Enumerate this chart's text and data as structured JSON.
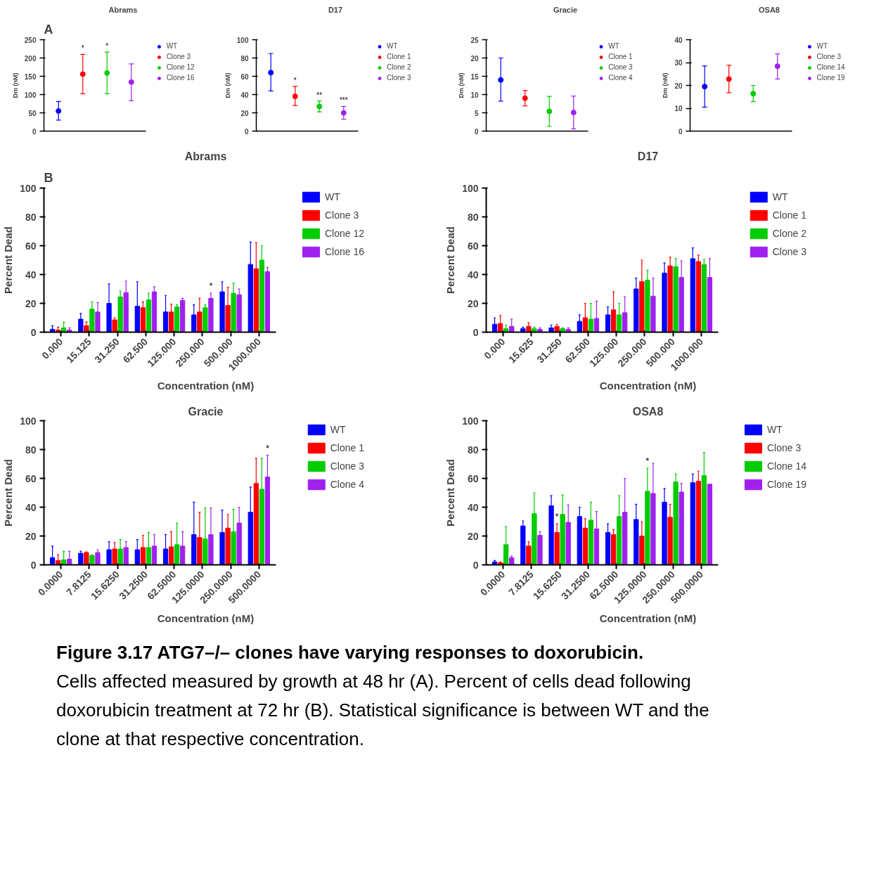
{
  "chart_data": [
    {
      "type": "scatter",
      "title": "Abrams",
      "ylabel": "Dm (nM)",
      "categories": [
        null,
        null,
        null,
        null
      ],
      "ylim": [
        0,
        250
      ],
      "yticks": [
        0,
        50,
        100,
        150,
        200,
        250
      ],
      "tick_labels": "y",
      "grid": false,
      "legend": "right",
      "marker": "circle",
      "annotations": [
        "A"
      ],
      "series": [
        {
          "name": "WT",
          "color": "#0000ff",
          "values": [
            55,
            null,
            null,
            null
          ],
          "errors": [
            [
              30,
              81
            ],
            null,
            null,
            null
          ]
        },
        {
          "name": "Clone 3",
          "color": "#ff0000",
          "values": [
            null,
            156,
            null,
            null
          ],
          "errors": [
            null,
            [
              102,
              210
            ],
            null,
            null
          ],
          "value_labels": [
            null,
            "*",
            null,
            null
          ]
        },
        {
          "name": "Clone 12",
          "color": "#00cc00",
          "values": [
            null,
            null,
            159,
            null
          ],
          "errors": [
            null,
            null,
            [
              102,
              216
            ],
            null
          ],
          "value_labels": [
            null,
            null,
            "*",
            null
          ]
        },
        {
          "name": "Clone 16",
          "color": "#a020f0",
          "values": [
            null,
            null,
            null,
            134
          ],
          "errors": [
            null,
            null,
            null,
            [
              83,
              184
            ]
          ]
        }
      ]
    },
    {
      "type": "scatter",
      "title": "D17",
      "ylabel": "Dm (nM)",
      "categories": [
        null,
        null,
        null,
        null
      ],
      "ylim": [
        0,
        100
      ],
      "yticks": [
        0,
        20,
        40,
        60,
        80,
        100
      ],
      "tick_labels": "y",
      "grid": false,
      "legend": "right",
      "marker": "circle",
      "series": [
        {
          "name": "WT",
          "color": "#0000ff",
          "values": [
            64,
            null,
            null,
            null
          ],
          "errors": [
            [
              44,
              85
            ],
            null,
            null,
            null
          ]
        },
        {
          "name": "Clone 1",
          "color": "#ff0000",
          "values": [
            null,
            38,
            null,
            null
          ],
          "errors": [
            null,
            [
              28,
              49
            ],
            null,
            null
          ],
          "value_labels": [
            null,
            "*",
            null,
            null
          ]
        },
        {
          "name": "Clone 2",
          "color": "#00cc00",
          "values": [
            null,
            null,
            27,
            null
          ],
          "errors": [
            null,
            null,
            [
              21,
              33
            ],
            null
          ],
          "value_labels": [
            null,
            null,
            "**",
            null
          ]
        },
        {
          "name": "Clone 3",
          "color": "#a020f0",
          "values": [
            null,
            null,
            null,
            20
          ],
          "errors": [
            null,
            null,
            null,
            [
              13,
              27
            ]
          ],
          "value_labels": [
            null,
            null,
            null,
            "***"
          ]
        }
      ]
    },
    {
      "type": "scatter",
      "title": "Gracie",
      "ylabel": "Dm (nM)",
      "categories": [
        null,
        null,
        null,
        null
      ],
      "ylim": [
        0,
        25
      ],
      "yticks": [
        0,
        5,
        10,
        15,
        20,
        25
      ],
      "tick_labels": "y",
      "grid": false,
      "legend": "right",
      "marker": "circle",
      "series": [
        {
          "name": "WT",
          "color": "#0000ff",
          "values": [
            14,
            null,
            null,
            null
          ],
          "errors": [
            [
              8.2,
              20
            ],
            null,
            null,
            null
          ]
        },
        {
          "name": "Clone 1",
          "color": "#ff0000",
          "values": [
            null,
            9,
            null,
            null
          ],
          "errors": [
            null,
            [
              6.9,
              11.1
            ],
            null,
            null
          ]
        },
        {
          "name": "Clone 3",
          "color": "#00cc00",
          "values": [
            null,
            null,
            5.4,
            null
          ],
          "errors": [
            null,
            null,
            [
              1.3,
              9.5
            ],
            null
          ]
        },
        {
          "name": "Clone 4",
          "color": "#a020f0",
          "values": [
            null,
            null,
            null,
            5.1
          ],
          "errors": [
            null,
            null,
            null,
            [
              0.6,
              9.6
            ]
          ]
        }
      ]
    },
    {
      "type": "scatter",
      "title": "OSA8",
      "ylabel": "Dm (nM)",
      "categories": [
        null,
        null,
        null,
        null
      ],
      "ylim": [
        0,
        40
      ],
      "yticks": [
        0,
        10,
        20,
        30,
        40
      ],
      "tick_labels": "y",
      "grid": false,
      "legend": "right",
      "marker": "circle",
      "series": [
        {
          "name": "WT",
          "color": "#0000ff",
          "values": [
            19.5,
            null,
            null,
            null
          ],
          "errors": [
            [
              10.5,
              28.5
            ],
            null,
            null,
            null
          ]
        },
        {
          "name": "Clone 3",
          "color": "#ff0000",
          "values": [
            null,
            22.8,
            null,
            null
          ],
          "errors": [
            null,
            [
              16.8,
              28.8
            ],
            null,
            null
          ]
        },
        {
          "name": "Clone 14",
          "color": "#00cc00",
          "values": [
            null,
            null,
            16.4,
            null
          ],
          "errors": [
            null,
            null,
            [
              12.9,
              20
            ],
            null
          ]
        },
        {
          "name": "Clone 19",
          "color": "#a020f0",
          "values": [
            null,
            null,
            null,
            28.4
          ],
          "errors": [
            null,
            null,
            null,
            [
              22.8,
              33.8
            ]
          ]
        }
      ]
    },
    {
      "type": "bar",
      "title": "Abrams",
      "xlabel": "Concentration (nM)",
      "ylabel": "Percent Dead",
      "categories": [
        "0.000",
        "15.125",
        "31.250",
        "62.500",
        "125.000",
        "250.000",
        "500.000",
        "1000.000"
      ],
      "ylim": [
        0,
        100
      ],
      "yticks": [
        0,
        20,
        40,
        60,
        80,
        100
      ],
      "grid": false,
      "legend": "right",
      "annotations": [
        "B"
      ],
      "series": [
        {
          "name": "WT",
          "color": "#0000ff",
          "values": [
            2,
            9,
            20,
            18,
            14,
            12,
            28,
            47
          ],
          "errors": [
            [
              2,
              4.5
            ],
            [
              9,
              13
            ],
            [
              20,
              33.5
            ],
            [
              18,
              35
            ],
            [
              14,
              25.5
            ],
            [
              12,
              19
            ],
            [
              28,
              35
            ],
            [
              47,
              62.5
            ]
          ]
        },
        {
          "name": "Clone 3",
          "color": "#ff0000",
          "values": [
            1.5,
            4.5,
            8.5,
            17,
            14,
            14,
            18.5,
            44
          ],
          "errors": [
            [
              1.5,
              3.5
            ],
            [
              4.5,
              7
            ],
            [
              8.5,
              10
            ],
            [
              17,
              21
            ],
            [
              14,
              19.5
            ],
            [
              14,
              23.5
            ],
            [
              18.5,
              31
            ],
            [
              44,
              62
            ]
          ]
        },
        {
          "name": "Clone 12",
          "color": "#00cc00",
          "values": [
            3,
            16,
            24.5,
            22.5,
            17.5,
            17,
            27,
            50
          ],
          "errors": [
            [
              3,
              7
            ],
            [
              16,
              21
            ],
            [
              24.5,
              28.5
            ],
            [
              22.5,
              27
            ],
            [
              17.5,
              19
            ],
            [
              17,
              19
            ],
            [
              27,
              34
            ],
            [
              50,
              60
            ]
          ]
        },
        {
          "name": "Clone 16",
          "color": "#a020f0",
          "values": [
            1.5,
            14,
            27.5,
            28,
            22,
            23.5,
            26,
            42
          ],
          "errors": [
            [
              1.5,
              3
            ],
            [
              14,
              20.5
            ],
            [
              27.5,
              35.5
            ],
            [
              28,
              31.5
            ],
            [
              22,
              23.5
            ],
            [
              23.5,
              27
            ],
            [
              26,
              30
            ],
            [
              42,
              45
            ]
          ],
          "value_labels": [
            null,
            null,
            null,
            null,
            null,
            "*",
            null,
            null
          ]
        }
      ]
    },
    {
      "type": "bar",
      "title": "D17",
      "xlabel": "Concentration (nM)",
      "ylabel": "Percent Dead",
      "categories": [
        "0.000",
        "15.625",
        "31.250",
        "62.500",
        "125.000",
        "250.000",
        "500.000",
        "1000.000"
      ],
      "ylim": [
        0,
        100
      ],
      "yticks": [
        0,
        20,
        40,
        60,
        80,
        100
      ],
      "grid": false,
      "legend": "right",
      "series": [
        {
          "name": "WT",
          "color": "#0000ff",
          "values": [
            5.5,
            2.5,
            3,
            7.5,
            12,
            30,
            41,
            51
          ],
          "errors": [
            [
              5.5,
              10
            ],
            [
              2.5,
              3.5
            ],
            [
              3,
              5
            ],
            [
              7.5,
              12
            ],
            [
              12,
              17.5
            ],
            [
              30,
              37.5
            ],
            [
              41,
              48
            ],
            [
              51,
              58.5
            ]
          ]
        },
        {
          "name": "Clone 1",
          "color": "#ff0000",
          "values": [
            6,
            4,
            4,
            10,
            15.5,
            35,
            46,
            49
          ],
          "errors": [
            [
              6,
              11.5
            ],
            [
              4,
              6.5
            ],
            [
              4,
              5.5
            ],
            [
              10,
              20
            ],
            [
              15.5,
              28
            ],
            [
              35,
              50
            ],
            [
              46,
              52
            ],
            [
              49,
              53.5
            ]
          ]
        },
        {
          "name": "Clone 2",
          "color": "#00cc00",
          "values": [
            2.5,
            2.5,
            2.5,
            9,
            12,
            36,
            45.5,
            47
          ],
          "errors": [
            [
              2.5,
              5
            ],
            [
              2.5,
              3.5
            ],
            [
              2.5,
              3
            ],
            [
              9,
              20
            ],
            [
              12,
              20
            ],
            [
              36,
              43
            ],
            [
              45.5,
              51
            ],
            [
              47,
              50.5
            ]
          ]
        },
        {
          "name": "Clone 3",
          "color": "#a020f0",
          "values": [
            4,
            2,
            2,
            9.5,
            13.5,
            25,
            38,
            38
          ],
          "errors": [
            [
              4,
              9
            ],
            [
              2,
              3
            ],
            [
              2,
              3
            ],
            [
              9.5,
              21.5
            ],
            [
              13.5,
              24.5
            ],
            [
              25,
              37.5
            ],
            [
              38,
              49.5
            ],
            [
              38,
              51
            ]
          ]
        }
      ]
    },
    {
      "type": "bar",
      "title": "Gracie",
      "xlabel": "Concentration (nM)",
      "ylabel": "Percent Dead",
      "categories": [
        "0.0000",
        "7.8125",
        "15.6250",
        "31.2500",
        "62.5000",
        "125.0000",
        "250.0000",
        "500.0000"
      ],
      "ylim": [
        0,
        100
      ],
      "yticks": [
        0,
        20,
        40,
        60,
        80,
        100
      ],
      "grid": false,
      "legend": "right",
      "series": [
        {
          "name": "WT",
          "color": "#0000ff",
          "values": [
            5,
            8,
            10.5,
            10.5,
            11,
            21,
            22.5,
            36.5
          ],
          "errors": [
            [
              5,
              13
            ],
            [
              8,
              9.5
            ],
            [
              10.5,
              16
            ],
            [
              10.5,
              17.5
            ],
            [
              11,
              21
            ],
            [
              21,
              43.5
            ],
            [
              22.5,
              38
            ],
            [
              36.5,
              54
            ]
          ]
        },
        {
          "name": "Clone 1",
          "color": "#ff0000",
          "values": [
            3,
            8.5,
            11,
            12,
            12.5,
            19,
            25.5,
            56.5
          ],
          "errors": [
            [
              3,
              7
            ],
            [
              8.5,
              9
            ],
            [
              11,
              15.5
            ],
            [
              12,
              20.5
            ],
            [
              12.5,
              23
            ],
            [
              19,
              36.5
            ],
            [
              25.5,
              35
            ],
            [
              56.5,
              74
            ]
          ]
        },
        {
          "name": "Clone 3",
          "color": "#00cc00",
          "values": [
            3.5,
            6.5,
            11,
            12,
            14,
            18,
            23,
            52.5
          ],
          "errors": [
            [
              3.5,
              9.5
            ],
            [
              6.5,
              7
            ],
            [
              11,
              17.5
            ],
            [
              12,
              22.5
            ],
            [
              14,
              29
            ],
            [
              18,
              39.5
            ],
            [
              23,
              38.5
            ],
            [
              52.5,
              74
            ]
          ]
        },
        {
          "name": "Clone 4",
          "color": "#a020f0",
          "values": [
            4,
            8.5,
            12,
            13,
            13,
            21,
            29,
            61
          ],
          "errors": [
            [
              4,
              9.5
            ],
            [
              8.5,
              10.5
            ],
            [
              12,
              16
            ],
            [
              13,
              21
            ],
            [
              13,
              23
            ],
            [
              21,
              39.5
            ],
            [
              29,
              40
            ],
            [
              61,
              76
            ]
          ],
          "value_labels": [
            null,
            null,
            null,
            null,
            null,
            null,
            null,
            "*"
          ]
        }
      ]
    },
    {
      "type": "bar",
      "title": "OSA8",
      "xlabel": "Concentration (nM)",
      "ylabel": "Percent Dead",
      "categories": [
        "0.0000",
        "7.8125",
        "15.6250",
        "31.2500",
        "62.5000",
        "125.0000",
        "250.0000",
        "500.0000"
      ],
      "ylim": [
        0,
        100
      ],
      "yticks": [
        0,
        20,
        40,
        60,
        80,
        100
      ],
      "grid": false,
      "legend": "right",
      "annotations": [
        "Figure 3.17 ATG7–/– clones have varying responses to doxorubicin",
        ". Cells affected measured by growth at 48 hr (A). Percent of cells dead following doxorubicin treatment at 72 hr (B). Statistical significance is between WT and the clone at that respective concentration."
      ],
      "series": [
        {
          "name": "WT",
          "color": "#0000ff",
          "values": [
            2,
            27,
            41,
            33.5,
            22.5,
            31.5,
            43.5,
            57
          ],
          "errors": [
            [
              2,
              3
            ],
            [
              27,
              30.5
            ],
            [
              41,
              48
            ],
            [
              33.5,
              40
            ],
            [
              22.5,
              28.5
            ],
            [
              31.5,
              42
            ],
            [
              43.5,
              53
            ],
            [
              57,
              63
            ]
          ]
        },
        {
          "name": "Clone 3",
          "color": "#ff0000",
          "values": [
            1.5,
            13,
            22.5,
            25.5,
            21,
            20,
            33,
            58
          ],
          "errors": [
            [
              1.5,
              2
            ],
            [
              13,
              16
            ],
            [
              22.5,
              28.5
            ],
            [
              25.5,
              32
            ],
            [
              21,
              24.5
            ],
            [
              20,
              30
            ],
            [
              33,
              42
            ],
            [
              58,
              65
            ]
          ],
          "value_labels": [
            null,
            null,
            "*",
            null,
            null,
            null,
            null,
            null
          ]
        },
        {
          "name": "Clone 14",
          "color": "#00cc00",
          "values": [
            14,
            35.5,
            35,
            31,
            33.5,
            51,
            57.5,
            62
          ],
          "errors": [
            [
              14,
              26.5
            ],
            [
              35.5,
              50
            ],
            [
              35,
              48.5
            ],
            [
              31,
              43.5
            ],
            [
              33.5,
              48
            ],
            [
              51,
              67
            ],
            [
              57.5,
              63
            ],
            [
              62,
              78
            ]
          ],
          "value_labels": [
            null,
            null,
            null,
            null,
            null,
            "*",
            null,
            null
          ]
        },
        {
          "name": "Clone 19",
          "color": "#a020f0",
          "values": [
            5,
            20.5,
            29.5,
            25,
            36.5,
            49.5,
            50.5,
            56
          ],
          "errors": [
            [
              5,
              6
            ],
            [
              20.5,
              23
            ],
            [
              29.5,
              41.5
            ],
            [
              25,
              37
            ],
            [
              36.5,
              60
            ],
            [
              49.5,
              70.5
            ],
            [
              50.5,
              56.5
            ],
            null
          ]
        }
      ]
    }
  ]
}
